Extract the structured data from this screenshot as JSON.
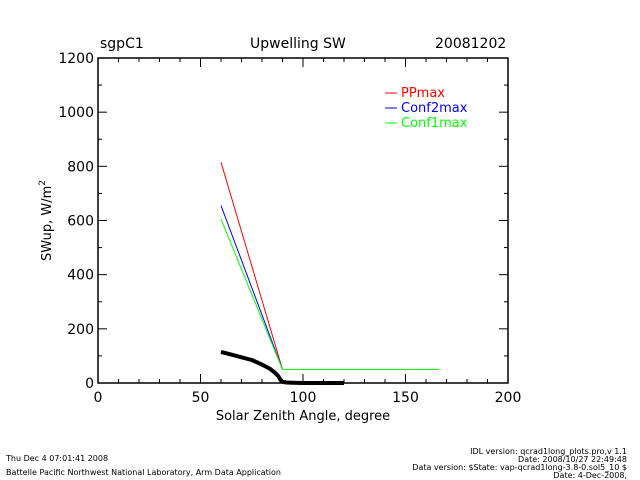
{
  "header": {
    "site": "sgpC1",
    "title": "Upwelling SW",
    "date": "20081202"
  },
  "footer": {
    "timestamp": "Thu Dec  4 07:01:41 2008",
    "org": "Battelle Pacific Northwest National Laboratory, Arm Data Application",
    "idl_version": "IDL version: qcrad1long_plots.pro,v 1.1",
    "date_line": "Date: 2008/10/27 22:49:48",
    "data_version": "Data version: $State: vap-qcrad1long-3.8-0.sol5_10 $",
    "date2": "Date: 4-Dec-2008,"
  },
  "chart_data": {
    "type": "line",
    "title": "Upwelling SW",
    "xlabel": "Solar Zenith Angle, degree",
    "ylabel": "SWup, W/m",
    "ylabel_superscript": "2",
    "xlim": [
      0,
      200
    ],
    "ylim": [
      0,
      1200
    ],
    "xticks": [
      "0",
      "50",
      "100",
      "150",
      "200"
    ],
    "yticks": [
      "0",
      "200",
      "400",
      "600",
      "800",
      "1000",
      "1200"
    ],
    "xtick_values": [
      0,
      50,
      100,
      150,
      200
    ],
    "ytick_values": [
      0,
      200,
      400,
      600,
      800,
      1000,
      1200
    ],
    "legend_position": "top-right",
    "series": [
      {
        "name": "PPmax",
        "color": "#ff0000",
        "x": [
          60,
          90,
          166
        ],
        "y": [
          815,
          50,
          50
        ]
      },
      {
        "name": "Conf2max",
        "color": "#0000ff",
        "x": [
          60,
          90,
          166
        ],
        "y": [
          655,
          50,
          50
        ]
      },
      {
        "name": "Conf1max",
        "color": "#00ff00",
        "x": [
          60,
          90,
          166
        ],
        "y": [
          605,
          50,
          50
        ]
      },
      {
        "name": "",
        "color": "#000000",
        "x": [
          60,
          65,
          70,
          75,
          80,
          84,
          86,
          88,
          89,
          90,
          92,
          95,
          100,
          110,
          120
        ],
        "y": [
          115,
          105,
          95,
          85,
          68,
          52,
          40,
          25,
          12,
          4,
          2,
          1,
          0,
          0,
          0
        ]
      }
    ]
  }
}
